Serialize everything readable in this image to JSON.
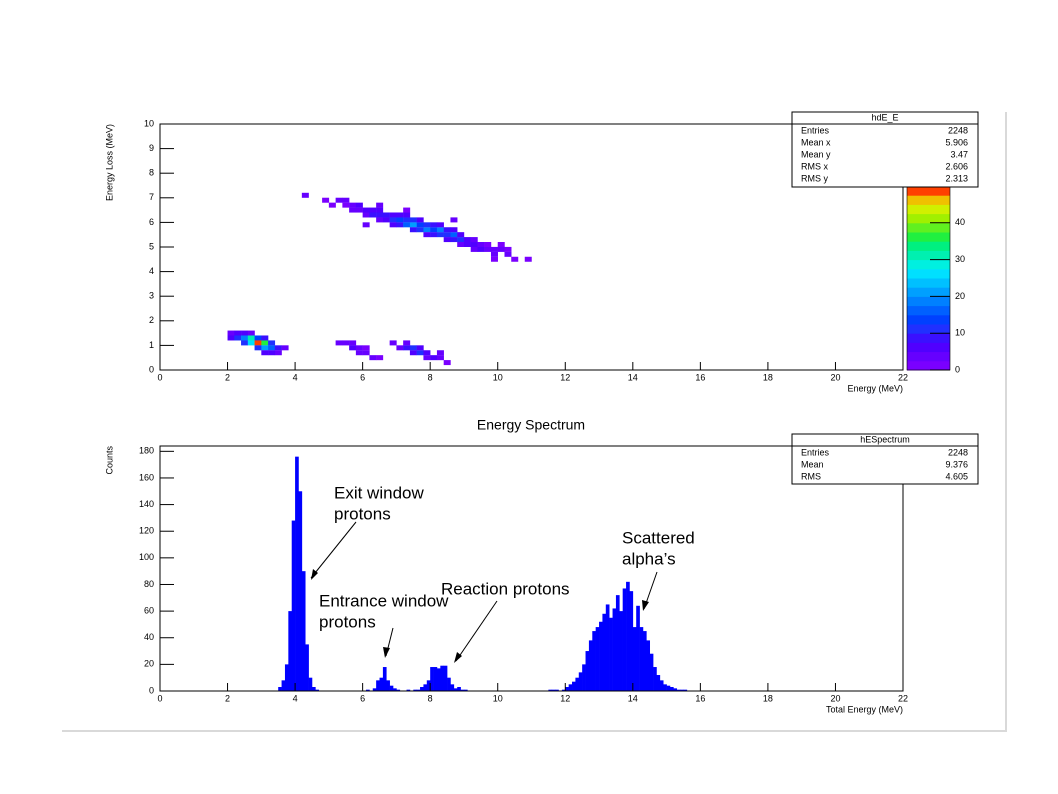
{
  "chart_data": [
    {
      "type": "heatmap",
      "x_label": "Energy (MeV)",
      "y_label": "Energy Loss (MeV)",
      "x": [
        4.2,
        4.8,
        5.2,
        5.4,
        5.6,
        5.4,
        5.6,
        5.8,
        5.8,
        6.0,
        6.0,
        6.2,
        6.2,
        6.4,
        6.4,
        6.4,
        6.6,
        6.6,
        6.8,
        6.8,
        6.8,
        7.0,
        7.0,
        7.0,
        7.2,
        7.2,
        7.2,
        7.4,
        7.4,
        7.4,
        7.6,
        7.6,
        7.6,
        7.8,
        7.8,
        7.8,
        8.0,
        8.0,
        8.0,
        8.2,
        8.2,
        8.2,
        8.4,
        8.4,
        8.4,
        8.6,
        8.6,
        8.6,
        8.8,
        8.8,
        8.8,
        9.0,
        9.0,
        9.2,
        9.2,
        9.2,
        9.4,
        9.4,
        9.6,
        9.6,
        9.8,
        9.8,
        10.0,
        10.0,
        10.2,
        10.2,
        9.8,
        10.4,
        10.8,
        6.4,
        7.2,
        5.0,
        6.0,
        8.6,
        2.0,
        2.2,
        2.4,
        2.6,
        2.0,
        2.2,
        2.4,
        2.6,
        2.8,
        2.4,
        2.6,
        2.8,
        3.0,
        3.2,
        2.8,
        3.0,
        3.2,
        3.4,
        3.6,
        3.0,
        3.0,
        3.4,
        3.2,
        5.2,
        5.4,
        5.6,
        5.6,
        5.8,
        5.8,
        6.0,
        6.2,
        6.4,
        6.0,
        6.8,
        7.0,
        7.2,
        7.4,
        7.4,
        7.6,
        7.6,
        7.8,
        8.0,
        8.2,
        8.2,
        7.2,
        8.4,
        7.8
      ],
      "y": [
        7.0,
        6.8,
        6.8,
        6.8,
        6.6,
        6.6,
        6.4,
        6.6,
        6.4,
        6.4,
        6.2,
        6.4,
        6.2,
        6.4,
        6.2,
        6.0,
        6.2,
        6.0,
        6.2,
        6.0,
        5.8,
        6.0,
        6.2,
        5.8,
        6.0,
        5.8,
        6.2,
        5.8,
        6.0,
        5.6,
        5.8,
        5.6,
        6.0,
        5.6,
        5.8,
        5.4,
        5.6,
        5.8,
        5.4,
        5.6,
        5.4,
        5.8,
        5.4,
        5.6,
        5.2,
        5.4,
        5.2,
        5.6,
        5.2,
        5.4,
        5.0,
        5.2,
        5.0,
        5.0,
        5.2,
        4.8,
        5.0,
        4.8,
        4.8,
        5.0,
        4.8,
        4.6,
        5.0,
        4.8,
        4.8,
        4.6,
        4.4,
        4.4,
        4.4,
        6.6,
        6.4,
        6.6,
        5.8,
        6.0,
        1.4,
        1.4,
        1.4,
        1.4,
        1.2,
        1.2,
        1.2,
        1.2,
        1.2,
        1.0,
        1.0,
        1.0,
        1.0,
        1.0,
        0.8,
        0.8,
        0.8,
        0.8,
        0.8,
        1.2,
        0.6,
        0.6,
        0.6,
        1.0,
        1.0,
        1.0,
        0.8,
        0.8,
        0.6,
        0.6,
        0.4,
        0.4,
        0.8,
        1.0,
        0.8,
        0.8,
        0.8,
        0.6,
        0.6,
        0.8,
        0.6,
        0.4,
        0.6,
        0.4,
        1.0,
        0.2,
        0.4
      ],
      "values": [
        3,
        2,
        3,
        4,
        3,
        2,
        4,
        5,
        3,
        5,
        4,
        6,
        8,
        5,
        8,
        4,
        9,
        6,
        7,
        11,
        5,
        13,
        6,
        8,
        12,
        15,
        5,
        20,
        10,
        8,
        14,
        12,
        7,
        18,
        10,
        6,
        13,
        9,
        8,
        19,
        12,
        6,
        10,
        8,
        5,
        16,
        8,
        5,
        11,
        7,
        4,
        6,
        7,
        5,
        4,
        3,
        4,
        5,
        3,
        2,
        4,
        3,
        2,
        3,
        2,
        3,
        2,
        2,
        2,
        3,
        2,
        2,
        3,
        3,
        4,
        5,
        6,
        4,
        6,
        10,
        18,
        30,
        14,
        12,
        25,
        48,
        35,
        10,
        12,
        20,
        16,
        8,
        4,
        9,
        6,
        3,
        5,
        3,
        4,
        3,
        5,
        3,
        4,
        3,
        4,
        2,
        2,
        3,
        4,
        8,
        10,
        6,
        12,
        5,
        7,
        5,
        4,
        3,
        3,
        2,
        4
      ],
      "xlim": [
        0,
        22
      ],
      "xticks": [
        0,
        2,
        4,
        6,
        8,
        10,
        12,
        14,
        16,
        18,
        20,
        22
      ],
      "ylim": [
        0,
        10
      ],
      "yticks": [
        0,
        1,
        2,
        3,
        4,
        5,
        6,
        7,
        8,
        9,
        10
      ],
      "zlim": [
        0,
        50
      ],
      "zticks": [
        0,
        10,
        20,
        30,
        40
      ],
      "colormap": [
        "#7a00ff",
        "#6600ff",
        "#5000ff",
        "#3a10ff",
        "#2030ff",
        "#0040ff",
        "#0060ff",
        "#0080ff",
        "#00a0ff",
        "#00c0ff",
        "#00e0ff",
        "#00f0e0",
        "#00f0b0",
        "#00f080",
        "#20f040",
        "#60f020",
        "#a0f000",
        "#d0f000",
        "#f0c000",
        "#ff4000"
      ],
      "stats": {
        "title": "hdE_E",
        "rows": [
          {
            "label": "Entries",
            "value": 2248
          },
          {
            "label": "Mean x",
            "value": 5.906
          },
          {
            "label": "Mean y",
            "value": 3.47
          },
          {
            "label": "RMS x",
            "value": 2.606
          },
          {
            "label": "RMS y",
            "value": 2.313
          }
        ]
      }
    },
    {
      "type": "histogram",
      "title": "Energy Spectrum",
      "x_label": "Total Energy (MeV)",
      "y_label": "Counts",
      "color": "#0000ff",
      "bins": [
        3.4,
        3.5,
        3.6,
        3.7,
        3.8,
        3.9,
        4.0,
        4.1,
        4.2,
        4.3,
        4.4,
        4.5,
        4.6,
        4.7,
        4.8,
        4.9,
        5.0,
        5.1,
        5.2,
        5.3,
        5.4,
        5.5,
        5.6,
        5.7,
        5.8,
        5.9,
        6.0,
        6.1,
        6.2,
        6.3,
        6.4,
        6.5,
        6.6,
        6.7,
        6.8,
        6.9,
        7.0,
        7.1,
        7.2,
        7.3,
        7.4,
        7.5,
        7.6,
        7.7,
        7.8,
        7.9,
        8.0,
        8.1,
        8.2,
        8.3,
        8.4,
        8.5,
        8.6,
        8.7,
        8.8,
        8.9,
        9.0,
        9.1,
        9.2,
        9.3,
        9.4,
        9.5,
        9.6,
        9.7,
        9.8,
        9.9,
        10.0,
        10.1,
        10.2,
        10.3,
        10.4,
        10.5,
        10.6,
        10.7,
        10.8,
        10.9,
        11.0,
        11.1,
        11.2,
        11.3,
        11.4,
        11.5,
        11.6,
        11.7,
        11.8,
        11.9,
        12.0,
        12.1,
        12.2,
        12.3,
        12.4,
        12.5,
        12.6,
        12.7,
        12.8,
        12.9,
        13.0,
        13.1,
        13.2,
        13.3,
        13.4,
        13.5,
        13.6,
        13.7,
        13.8,
        13.9,
        14.0,
        14.1,
        14.2,
        14.3,
        14.4,
        14.5,
        14.6,
        14.7,
        14.8,
        14.9,
        15.0,
        15.1,
        15.2,
        15.3,
        15.4,
        15.5,
        15.6,
        15.7,
        15.8
      ],
      "values": [
        0,
        3,
        8,
        20,
        60,
        128,
        176,
        150,
        90,
        35,
        10,
        3,
        1,
        0,
        0,
        0,
        0,
        0,
        0,
        0,
        0,
        0,
        0,
        0,
        0,
        0,
        0,
        1,
        0,
        2,
        8,
        10,
        18,
        8,
        4,
        2,
        1,
        0,
        0,
        1,
        0,
        1,
        1,
        3,
        5,
        8,
        18,
        18,
        17,
        19,
        19,
        10,
        5,
        2,
        3,
        1,
        1,
        0,
        0,
        0,
        0,
        0,
        0,
        0,
        0,
        0,
        0,
        0,
        0,
        0,
        0,
        0,
        0,
        0,
        0,
        0,
        0,
        0,
        0,
        0,
        0,
        1,
        1,
        1,
        0,
        1,
        3,
        5,
        7,
        10,
        14,
        20,
        30,
        38,
        45,
        48,
        52,
        58,
        65,
        55,
        62,
        72,
        60,
        77,
        82,
        75,
        48,
        64,
        48,
        45,
        38,
        28,
        18,
        12,
        8,
        5,
        4,
        3,
        2,
        1,
        1,
        1,
        0,
        0
      ],
      "xlim": [
        0,
        22
      ],
      "xticks": [
        0,
        2,
        4,
        6,
        8,
        10,
        12,
        14,
        16,
        18,
        20,
        22
      ],
      "ylim": [
        0,
        184
      ],
      "yticks": [
        0,
        20,
        40,
        60,
        80,
        100,
        120,
        140,
        160,
        180
      ],
      "stats": {
        "title": "hESpectrum",
        "rows": [
          {
            "label": "Entries",
            "value": 2248
          },
          {
            "label": "Mean",
            "value": 9.376
          },
          {
            "label": "RMS",
            "value": 4.605
          }
        ]
      },
      "annotations": [
        {
          "text": [
            "Exit window",
            "protons"
          ]
        },
        {
          "text": [
            "Entrance window",
            "protons"
          ]
        },
        {
          "text": [
            "Reaction protons"
          ]
        },
        {
          "text": [
            "Scattered",
            "alpha’s"
          ]
        }
      ]
    }
  ]
}
